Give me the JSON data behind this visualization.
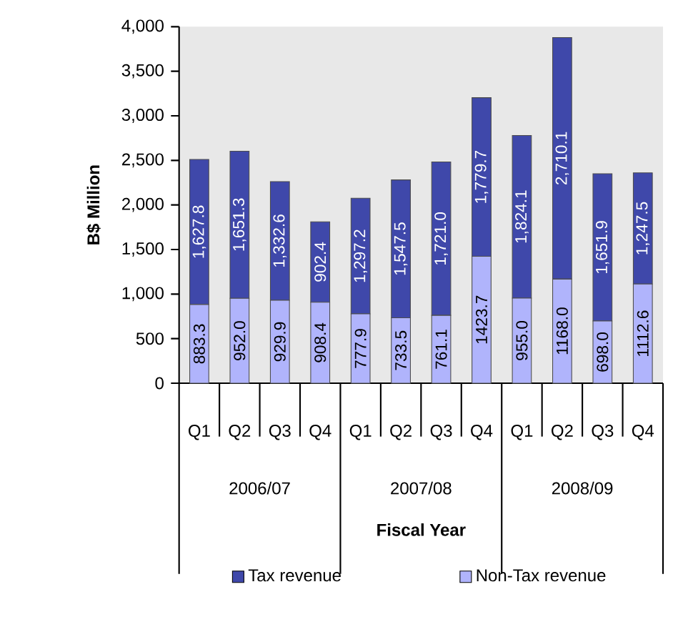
{
  "chart_data": {
    "type": "bar",
    "stacked": true,
    "categories": [
      "Q1",
      "Q2",
      "Q3",
      "Q4",
      "Q1",
      "Q2",
      "Q3",
      "Q4",
      "Q1",
      "Q2",
      "Q3",
      "Q4"
    ],
    "series": [
      {
        "name": "Non-Tax revenue",
        "color": "#b0b4fc",
        "values": [
          883.3,
          952.0,
          929.9,
          908.4,
          777.9,
          733.5,
          761.1,
          1423.7,
          955.0,
          1168.0,
          698.0,
          1112.6
        ],
        "value_labels": [
          "883.3",
          "952.0",
          "929.9",
          "908.4",
          "777.9",
          "733.5",
          "761.1",
          "1423.7",
          "955.0",
          "1168.0",
          "698.0",
          "1112.6"
        ]
      },
      {
        "name": "Tax revenue",
        "color": "#3f48aa",
        "values": [
          1627.8,
          1651.3,
          1332.6,
          902.4,
          1297.2,
          1547.5,
          1721.0,
          1779.7,
          1824.1,
          2710.1,
          1651.9,
          1247.5
        ],
        "value_labels": [
          "1,627.8",
          "1,651.3",
          "1,332.6",
          "902.4",
          "1,297.2",
          "1,547.5",
          "1,721.0",
          "1,779.7",
          "1,824.1",
          "2,710.1",
          "1,651.9",
          "1,247.5"
        ]
      }
    ],
    "xlabel": "Fiscal Year",
    "ylabel": "B$ Million",
    "annotations": [
      "2006/07",
      "2007/08",
      "2008/09"
    ],
    "ylim": [
      0,
      4000
    ],
    "yticks": [
      0,
      500,
      {
        "value": 1000,
        "label": "1,000"
      },
      {
        "value": 1500,
        "label": "1,500"
      },
      {
        "value": 2000,
        "label": "2,000"
      },
      {
        "value": 2500,
        "label": "2,500"
      },
      {
        "value": 3000,
        "label": "3,000"
      },
      {
        "value": 3500,
        "label": "3,500"
      },
      {
        "value": 4000,
        "label": "4,000"
      }
    ],
    "grid": false,
    "legend": "bottom"
  }
}
